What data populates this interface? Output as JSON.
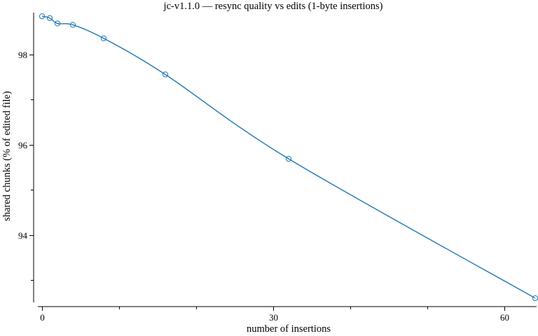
{
  "chart_data": {
    "type": "line",
    "title": "jc-v1.1.0 — resync quality vs edits (1-byte insertions)",
    "xlabel": "number of insertions",
    "ylabel": "shared chunks (% of edited file)",
    "xlim": [
      0,
      64
    ],
    "ylim": [
      92.6,
      98.9
    ],
    "xticks": [
      0,
      30,
      60
    ],
    "xticks_minor": [
      10,
      20,
      40,
      50
    ],
    "yticks": [
      94,
      96,
      98
    ],
    "yticks_minor": [
      93,
      95,
      97
    ],
    "grid": false,
    "series": [
      {
        "color": "#1f77b4",
        "marker": "circle",
        "x": [
          0,
          1,
          2,
          4,
          8,
          16,
          32,
          64
        ],
        "y": [
          98.85,
          98.81,
          98.69,
          98.66,
          98.36,
          97.56,
          95.69,
          92.6
        ]
      }
    ]
  }
}
